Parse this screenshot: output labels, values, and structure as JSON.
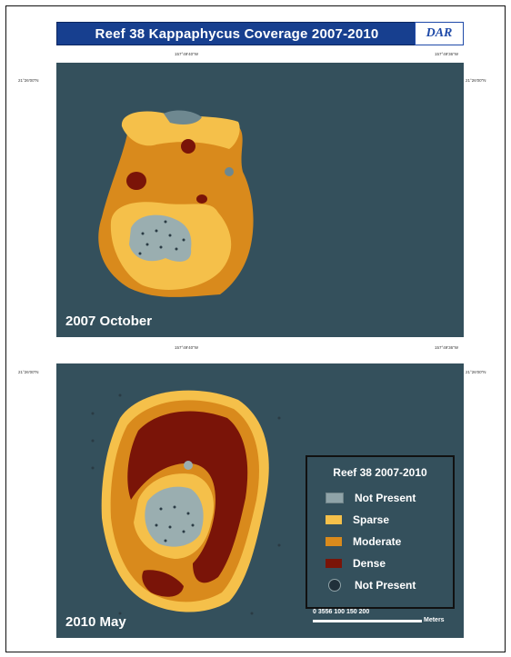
{
  "title": "Reef 38 Kappaphycus Coverage 2007-2010",
  "logo_text": "DAR",
  "panels": [
    {
      "label": "2007 October"
    },
    {
      "label": "2010 May"
    }
  ],
  "coordinates": {
    "top_left_x": "157°49'40\"W",
    "top_right_x": "157°49'36\"W",
    "left_y": "21°26'00\"N",
    "right_y": "21°26'00\"N"
  },
  "legend": {
    "title": "Reef 38 2007-2010",
    "items": [
      {
        "label": "Not Present",
        "color": "#8fa3a8"
      },
      {
        "label": "Sparse",
        "color": "#f5c04a"
      },
      {
        "label": "Moderate",
        "color": "#d98a1c"
      },
      {
        "label": "Dense",
        "color": "#7a1408"
      },
      {
        "label": "Not Present",
        "color": "#20303a"
      }
    ]
  },
  "scale_bar": {
    "ticks": "0  3556  100  150  200",
    "units": "Meters"
  },
  "colors": {
    "water": "#34505c",
    "sparse": "#f5c04a",
    "moderate": "#d98a1c",
    "dense": "#7a1408",
    "not_present": "#9aaeb0"
  }
}
